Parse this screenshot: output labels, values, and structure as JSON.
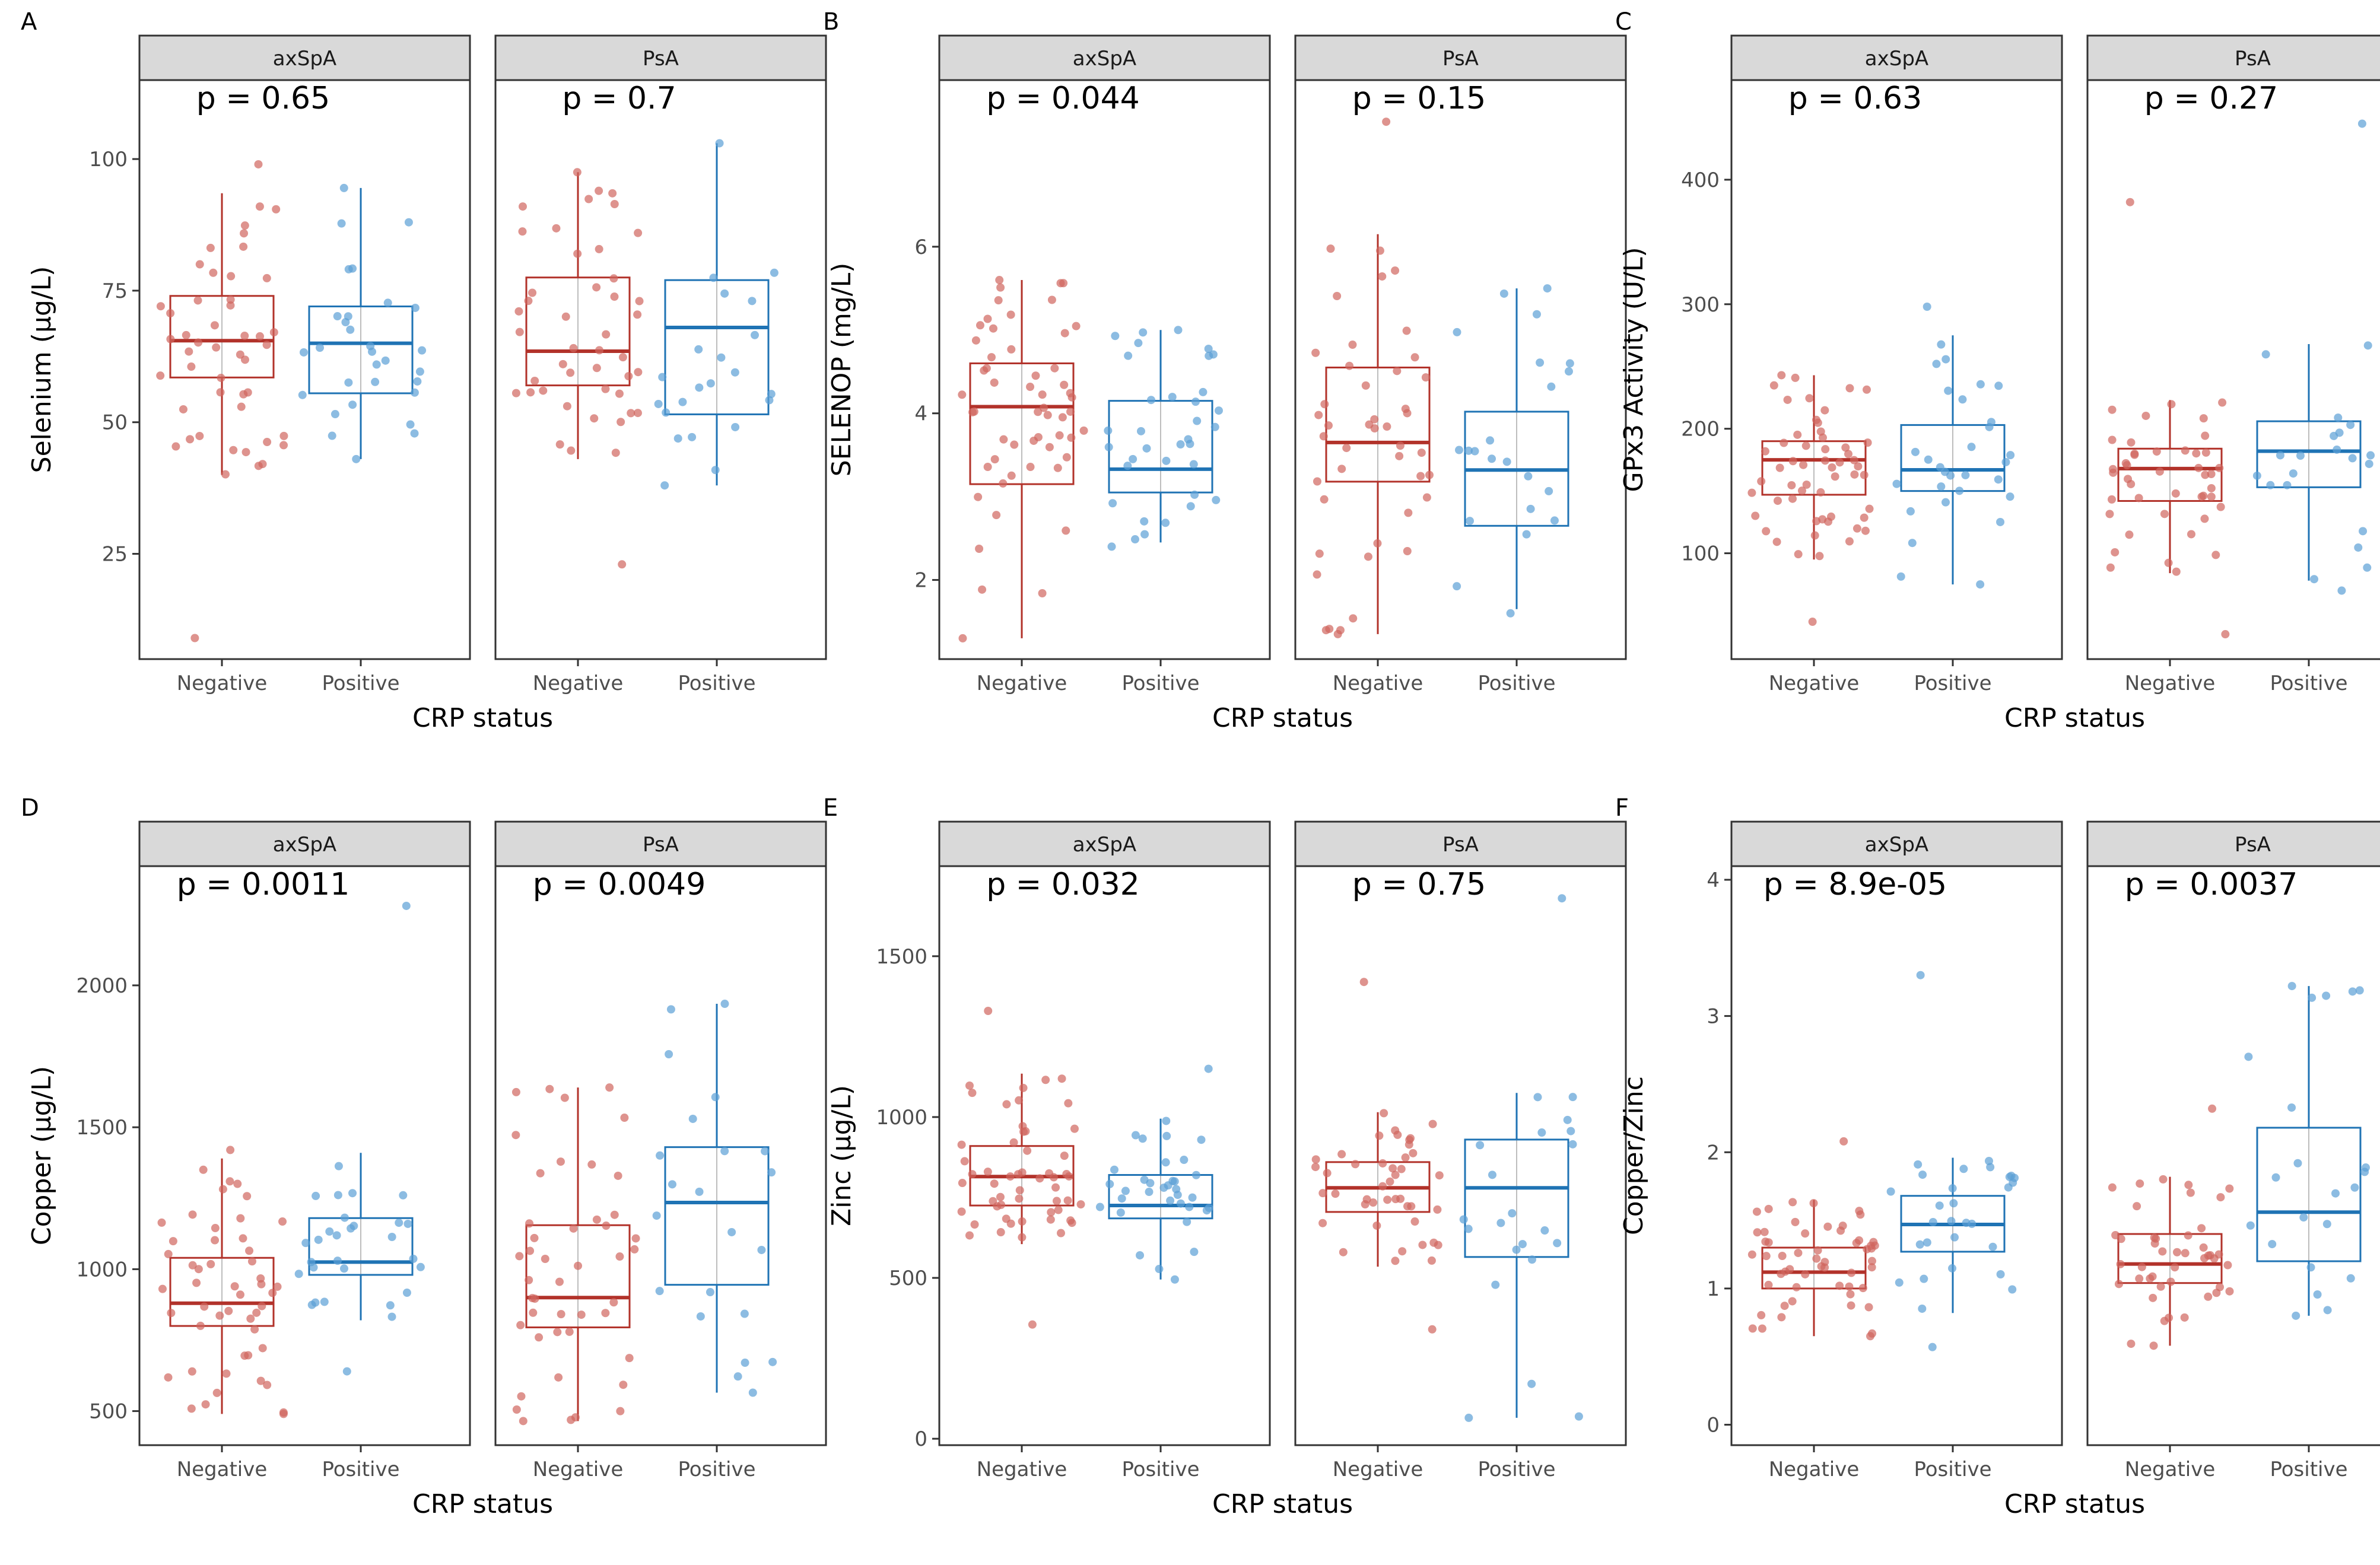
{
  "colors": {
    "negative": "#b2322a",
    "positive": "#1f73b4",
    "negative_point": "#d0655e",
    "positive_point": "#5b9fd6"
  },
  "chart_data": [
    {
      "type": "box",
      "panel": "A",
      "ylabel": "Selenium (µg/L)",
      "xlabel": "CRP status",
      "categories": [
        "Negative",
        "Positive"
      ],
      "ylim": [
        5,
        115
      ],
      "yticks": [
        25,
        50,
        75,
        100
      ],
      "facets": [
        {
          "name": "axSpA",
          "p_label": "p = 0.65",
          "groups": [
            {
              "label": "Negative",
              "box": {
                "q1": 58.5,
                "median": 65.5,
                "q3": 74,
                "lower": 40,
                "upper": 93.5
              },
              "range": [
                9,
                99
              ],
              "n": 48
            },
            {
              "label": "Positive",
              "box": {
                "q1": 55.5,
                "median": 65,
                "q3": 72,
                "lower": 43,
                "upper": 94.5
              },
              "range": [
                43,
                94.5
              ],
              "n": 30
            }
          ]
        },
        {
          "name": "PsA",
          "p_label": "p = 0.7",
          "groups": [
            {
              "label": "Negative",
              "box": {
                "q1": 57,
                "median": 63.5,
                "q3": 77.5,
                "lower": 43,
                "upper": 97.5
              },
              "range": [
                23,
                97.5
              ],
              "n": 45
            },
            {
              "label": "Positive",
              "box": {
                "q1": 51.5,
                "median": 68,
                "q3": 77,
                "lower": 38,
                "upper": 103
              },
              "range": [
                38,
                103
              ],
              "n": 22
            }
          ]
        }
      ]
    },
    {
      "type": "box",
      "panel": "B",
      "ylabel": "SELENOP (mg/L)",
      "xlabel": "CRP status",
      "categories": [
        "Negative",
        "Positive"
      ],
      "ylim": [
        1.05,
        8.0
      ],
      "yticks": [
        2,
        4,
        6
      ],
      "facets": [
        {
          "name": "axSpA",
          "p_label": "p = 0.044",
          "groups": [
            {
              "label": "Negative",
              "box": {
                "q1": 3.15,
                "median": 4.08,
                "q3": 4.6,
                "lower": 1.3,
                "upper": 5.6
              },
              "range": [
                1.3,
                5.6
              ],
              "n": 55
            },
            {
              "label": "Positive",
              "box": {
                "q1": 3.05,
                "median": 3.33,
                "q3": 4.15,
                "lower": 2.45,
                "upper": 5.0
              },
              "range": [
                2.4,
                5.0
              ],
              "n": 35
            }
          ]
        },
        {
          "name": "PsA",
          "p_label": "p = 0.15",
          "groups": [
            {
              "label": "Negative",
              "box": {
                "q1": 3.18,
                "median": 3.65,
                "q3": 4.55,
                "lower": 1.35,
                "upper": 6.15
              },
              "range": [
                1.35,
                7.5
              ],
              "n": 45
            },
            {
              "label": "Positive",
              "box": {
                "q1": 2.65,
                "median": 3.32,
                "q3": 4.02,
                "lower": 1.65,
                "upper": 5.5
              },
              "range": [
                1.6,
                5.5
              ],
              "n": 22
            }
          ]
        }
      ]
    },
    {
      "type": "box",
      "panel": "C",
      "ylabel": "GPx3 Activity (U/L)",
      "xlabel": "CRP status",
      "categories": [
        "Negative",
        "Positive"
      ],
      "ylim": [
        15,
        480
      ],
      "yticks": [
        100,
        200,
        300,
        400
      ],
      "facets": [
        {
          "name": "axSpA",
          "p_label": "p = 0.63",
          "groups": [
            {
              "label": "Negative",
              "box": {
                "q1": 147,
                "median": 175,
                "q3": 190,
                "lower": 95,
                "upper": 243
              },
              "range": [
                45,
                243
              ],
              "n": 55
            },
            {
              "label": "Positive",
              "box": {
                "q1": 150,
                "median": 167,
                "q3": 203,
                "lower": 75,
                "upper": 275
              },
              "range": [
                75,
                298
              ],
              "n": 30
            }
          ]
        },
        {
          "name": "PsA",
          "p_label": "p = 0.27",
          "groups": [
            {
              "label": "Negative",
              "box": {
                "q1": 142,
                "median": 168,
                "q3": 184,
                "lower": 84,
                "upper": 223
              },
              "range": [
                35,
                382
              ],
              "n": 45
            },
            {
              "label": "Positive",
              "box": {
                "q1": 153,
                "median": 182,
                "q3": 206,
                "lower": 78,
                "upper": 268
              },
              "range": [
                70,
                445
              ],
              "n": 22
            }
          ]
        }
      ]
    },
    {
      "type": "box",
      "panel": "D",
      "ylabel": "Copper (µg/L)",
      "xlabel": "CRP status",
      "categories": [
        "Negative",
        "Positive"
      ],
      "ylim": [
        380,
        2420
      ],
      "yticks": [
        500,
        1000,
        1500,
        2000
      ],
      "facets": [
        {
          "name": "axSpA",
          "p_label": "p = 0.0011",
          "groups": [
            {
              "label": "Negative",
              "box": {
                "q1": 800,
                "median": 880,
                "q3": 1040,
                "lower": 490,
                "upper": 1390
              },
              "range": [
                490,
                1420
              ],
              "n": 50
            },
            {
              "label": "Positive",
              "box": {
                "q1": 980,
                "median": 1025,
                "q3": 1180,
                "lower": 820,
                "upper": 1410
              },
              "range": [
                640,
                2280
              ],
              "n": 30
            }
          ]
        },
        {
          "name": "PsA",
          "p_label": "p = 0.0049",
          "groups": [
            {
              "label": "Negative",
              "box": {
                "q1": 795,
                "median": 900,
                "q3": 1155,
                "lower": 465,
                "upper": 1640
              },
              "range": [
                465,
                1640
              ],
              "n": 45
            },
            {
              "label": "Positive",
              "box": {
                "q1": 945,
                "median": 1235,
                "q3": 1430,
                "lower": 565,
                "upper": 1935
              },
              "range": [
                565,
                1935
              ],
              "n": 22
            }
          ]
        }
      ]
    },
    {
      "type": "box",
      "panel": "E",
      "ylabel": "Zinc (µg/L)",
      "xlabel": "CRP status",
      "categories": [
        "Negative",
        "Positive"
      ],
      "ylim": [
        -20,
        1780
      ],
      "yticks": [
        0,
        500,
        1000,
        1500
      ],
      "facets": [
        {
          "name": "axSpA",
          "p_label": "p = 0.032",
          "groups": [
            {
              "label": "Negative",
              "box": {
                "q1": 725,
                "median": 815,
                "q3": 910,
                "lower": 605,
                "upper": 1135
              },
              "range": [
                355,
                1330
              ],
              "n": 55
            },
            {
              "label": "Positive",
              "box": {
                "q1": 685,
                "median": 725,
                "q3": 820,
                "lower": 495,
                "upper": 995
              },
              "range": [
                495,
                1150
              ],
              "n": 35
            }
          ]
        },
        {
          "name": "PsA",
          "p_label": "p = 0.75",
          "groups": [
            {
              "label": "Negative",
              "box": {
                "q1": 705,
                "median": 780,
                "q3": 860,
                "lower": 535,
                "upper": 1015
              },
              "range": [
                340,
                1420
              ],
              "n": 45
            },
            {
              "label": "Positive",
              "box": {
                "q1": 565,
                "median": 780,
                "q3": 930,
                "lower": 65,
                "upper": 1075
              },
              "range": [
                65,
                1680
              ],
              "n": 22
            }
          ]
        }
      ]
    },
    {
      "type": "box",
      "panel": "F",
      "ylabel": "Copper/Zinc",
      "xlabel": "CRP status",
      "categories": [
        "Negative",
        "Positive"
      ],
      "ylim": [
        -0.15,
        4.1
      ],
      "yticks": [
        0,
        1,
        2,
        3,
        4
      ],
      "facets": [
        {
          "name": "axSpA",
          "p_label": "p = 8.9e-05",
          "groups": [
            {
              "label": "Negative",
              "box": {
                "q1": 1.0,
                "median": 1.12,
                "q3": 1.3,
                "lower": 0.65,
                "upper": 1.65
              },
              "range": [
                0.65,
                2.08
              ],
              "n": 55
            },
            {
              "label": "Positive",
              "box": {
                "q1": 1.27,
                "median": 1.47,
                "q3": 1.68,
                "lower": 0.82,
                "upper": 1.96
              },
              "range": [
                0.57,
                3.3
              ],
              "n": 30
            }
          ]
        },
        {
          "name": "PsA",
          "p_label": "p = 0.0037",
          "groups": [
            {
              "label": "Negative",
              "box": {
                "q1": 1.04,
                "median": 1.18,
                "q3": 1.4,
                "lower": 0.58,
                "upper": 1.82
              },
              "range": [
                0.58,
                2.32
              ],
              "n": 45
            },
            {
              "label": "Positive",
              "box": {
                "q1": 1.2,
                "median": 1.56,
                "q3": 2.18,
                "lower": 0.8,
                "upper": 3.22
              },
              "range": [
                0.8,
                3.22
              ],
              "n": 22
            }
          ]
        }
      ]
    }
  ]
}
